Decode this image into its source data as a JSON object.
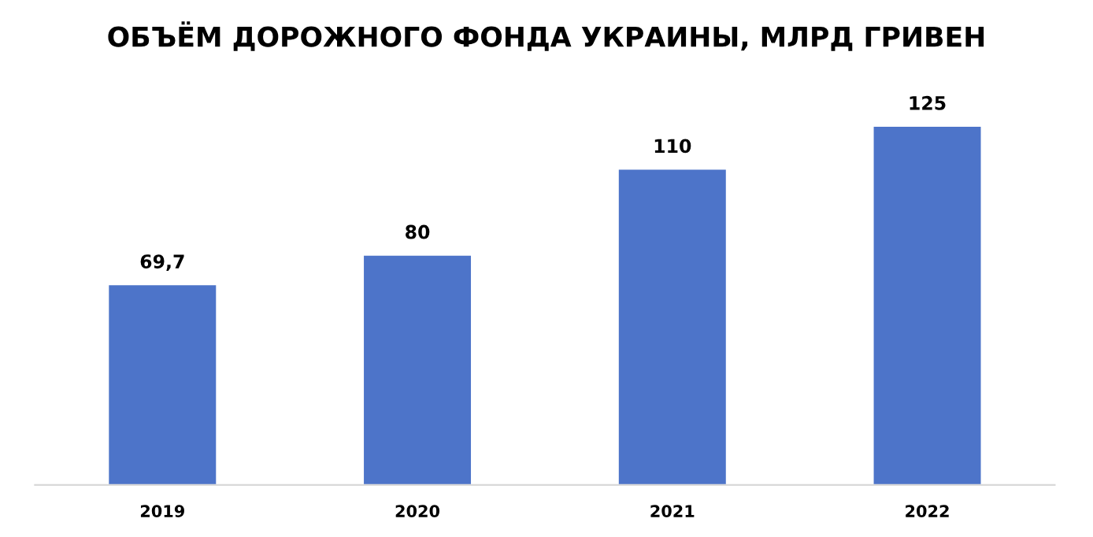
{
  "chart_data": {
    "type": "bar",
    "title": "ОБЪЁМ ДОРОЖНОГО ФОНДА УКРАИНЫ, МЛРД ГРИВЕН",
    "categories": [
      "2019",
      "2020",
      "2021",
      "2022"
    ],
    "values": [
      69.7,
      80,
      110,
      125
    ],
    "value_labels": [
      "69,7",
      "80",
      "110",
      "125"
    ],
    "color": "#4d74c9",
    "grid": false,
    "legend": false
  }
}
